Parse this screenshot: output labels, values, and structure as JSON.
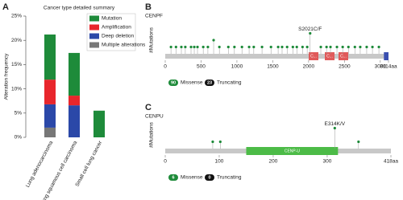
{
  "chart_data": [
    {
      "type": "stacked-bar",
      "panel_label": "A",
      "title": "Cancer type detailed summary",
      "y_label": "Alteration frequency",
      "categories": [
        "Lung adenocarcinoma",
        "Lung squamous cell carcinoma",
        "Small cell lung cancer"
      ],
      "series": [
        {
          "name": "Mutation",
          "color": "#1e8b3a",
          "values": [
            9.3,
            8.8,
            5.5
          ]
        },
        {
          "name": "Amplification",
          "color": "#e8262c",
          "values": [
            5.1,
            2.0,
            0
          ]
        },
        {
          "name": "Deep deletion",
          "color": "#2b48a8",
          "values": [
            4.8,
            6.6,
            0
          ]
        },
        {
          "name": "Multiple alterations",
          "color": "#777777",
          "values": [
            2.0,
            0,
            0
          ]
        }
      ],
      "ylim": [
        0,
        25
      ],
      "yticks": [
        {
          "value": 0,
          "label": "0%"
        },
        {
          "value": 5,
          "label": "5%"
        },
        {
          "value": 10,
          "label": "10%"
        },
        {
          "value": 15,
          "label": "15%"
        },
        {
          "value": 20,
          "label": "20%"
        },
        {
          "value": 25,
          "label": "25%"
        }
      ]
    },
    {
      "type": "lollipop",
      "panel_label": "B",
      "title": "CENPF",
      "y_label": "#Mutations",
      "xlim": [
        0,
        3114
      ],
      "xticks": [
        0,
        500,
        1000,
        1500,
        2000,
        2500,
        3000,
        {
          "value": 3114,
          "label": "3114aa"
        }
      ],
      "ylim": [
        0,
        4
      ],
      "color": "#1e8b3a",
      "positions": [
        80,
        150,
        225,
        280,
        360,
        405,
        450,
        530,
        595,
        675,
        755,
        880,
        965,
        1070,
        1170,
        1235,
        1350,
        1475,
        1575,
        1630,
        1700,
        1780,
        1835,
        1915,
        1980,
        2021,
        2170,
        2250,
        2305,
        2395,
        2475,
        2555,
        2645,
        2720,
        2810,
        2890,
        2980
      ],
      "counts": [
        1,
        1,
        1,
        1,
        1,
        1,
        1,
        1,
        1,
        2,
        1,
        1,
        1,
        1,
        1,
        1,
        1,
        1,
        1,
        1,
        1,
        1,
        1,
        1,
        1,
        3,
        1,
        1,
        1,
        1,
        1,
        1,
        1,
        1,
        1,
        1,
        1
      ],
      "domains": [
        {
          "label": "C...",
          "start": 2001,
          "end": 2136,
          "color": "#e05a5a"
        },
        {
          "label": "C...",
          "start": 2226,
          "end": 2361,
          "color": "#e05a5a"
        },
        {
          "label": "C...",
          "start": 2417,
          "end": 2552,
          "color": "#e05a5a"
        },
        {
          "start": 3050,
          "end": 3114,
          "color": "#3a4fb0"
        }
      ],
      "annotations": [
        {
          "text": "S2021C/F",
          "position": 2021
        }
      ],
      "legend": [
        {
          "count": 90,
          "label": "Missense",
          "color": "#1e8b3a"
        },
        {
          "count": 23,
          "label": "Truncating",
          "color": "#111111"
        }
      ]
    },
    {
      "type": "lollipop",
      "panel_label": "C",
      "title": "CENPU",
      "y_label": "#Mutations",
      "xlim": [
        0,
        418
      ],
      "xticks": [
        0,
        100,
        200,
        300,
        {
          "value": 418,
          "label": "418aa"
        }
      ],
      "ylim": [
        0,
        4
      ],
      "color": "#1e8b3a",
      "positions": [
        88,
        102,
        314,
        358
      ],
      "counts": [
        1,
        1,
        3,
        1
      ],
      "domains": [
        {
          "label": "CENP-U",
          "start": 150,
          "end": 320,
          "color": "#4cbb47"
        }
      ],
      "annotations": [
        {
          "text": "E314K/V",
          "position": 314
        }
      ],
      "legend": [
        {
          "count": 6,
          "label": "Missense",
          "color": "#1e8b3a"
        },
        {
          "count": 0,
          "label": "Truncating",
          "color": "#111111"
        }
      ]
    }
  ]
}
